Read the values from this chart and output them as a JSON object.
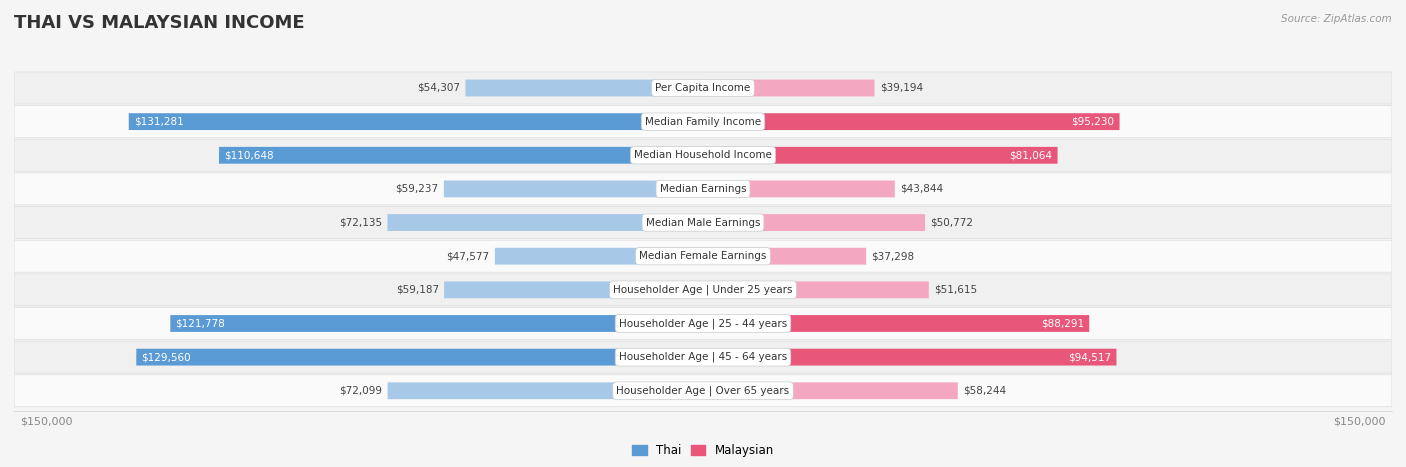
{
  "title": "THAI VS MALAYSIAN INCOME",
  "source": "Source: ZipAtlas.com",
  "categories": [
    "Per Capita Income",
    "Median Family Income",
    "Median Household Income",
    "Median Earnings",
    "Median Male Earnings",
    "Median Female Earnings",
    "Householder Age | Under 25 years",
    "Householder Age | 25 - 44 years",
    "Householder Age | 45 - 64 years",
    "Householder Age | Over 65 years"
  ],
  "thai_values": [
    54307,
    131281,
    110648,
    59237,
    72135,
    47577,
    59187,
    121778,
    129560,
    72099
  ],
  "malaysian_values": [
    39194,
    95230,
    81064,
    43844,
    50772,
    37298,
    51615,
    88291,
    94517,
    58244
  ],
  "thai_labels": [
    "$54,307",
    "$131,281",
    "$110,648",
    "$59,237",
    "$72,135",
    "$47,577",
    "$59,187",
    "$121,778",
    "$129,560",
    "$72,099"
  ],
  "malaysian_labels": [
    "$39,194",
    "$95,230",
    "$81,064",
    "$43,844",
    "$50,772",
    "$37,298",
    "$51,615",
    "$88,291",
    "$94,517",
    "$58,244"
  ],
  "thai_color_light": "#a8c8e8",
  "thai_color_dark": "#5b9bd5",
  "malaysian_color_light": "#f4a7c0",
  "malaysian_color_dark": "#e8567a",
  "max_value": 150000,
  "background_color": "#f5f5f5",
  "row_bg_even": "#f0f0f0",
  "row_bg_odd": "#fafafa",
  "title_fontsize": 13,
  "label_fontsize": 7.5,
  "value_fontsize": 7.5,
  "legend_fontsize": 8.5,
  "axis_label_fontsize": 8,
  "thai_dark_threshold": 95000,
  "malaysian_dark_threshold": 80000
}
